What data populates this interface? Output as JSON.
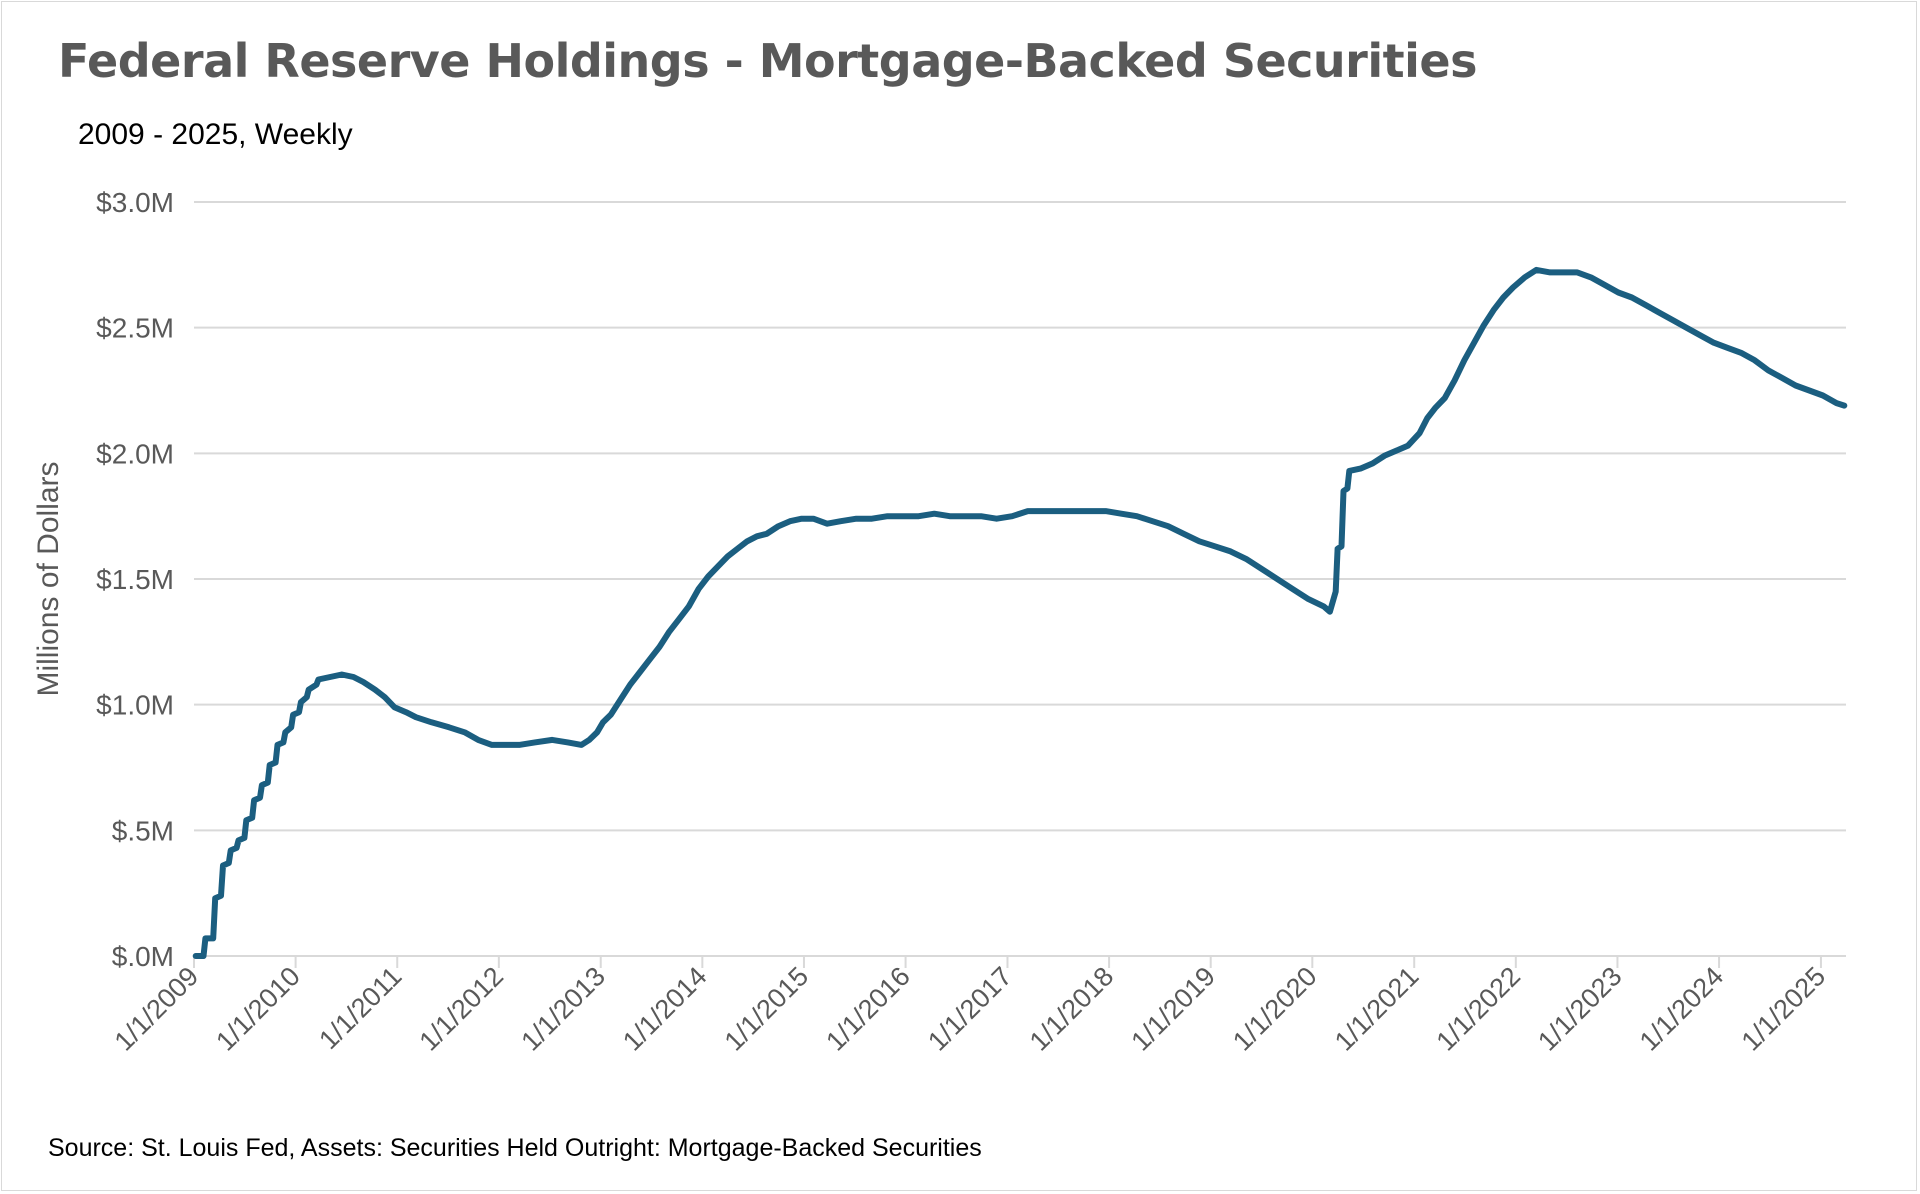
{
  "chart_data": {
    "type": "line",
    "title": "Federal Reserve Holdings - Mortgage-Backed Securities",
    "subtitle": "2009 - 2025, Weekly",
    "xlabel": "",
    "ylabel": "Millions of Dollars",
    "source": "Source: St. Louis Fed, Assets: Securities Held Outright: Mortgage-Backed Securities",
    "ylim": [
      0,
      3.0
    ],
    "y_unit": "millions (as labeled)",
    "yticks": [
      {
        "value": 0.0,
        "label": "$.0M"
      },
      {
        "value": 0.5,
        "label": "$.5M"
      },
      {
        "value": 1.0,
        "label": "$1.0M"
      },
      {
        "value": 1.5,
        "label": "$1.5M"
      },
      {
        "value": 2.0,
        "label": "$2.0M"
      },
      {
        "value": 2.5,
        "label": "$2.5M"
      },
      {
        "value": 3.0,
        "label": "$3.0M"
      }
    ],
    "xlim": [
      "2009-01-01",
      "2025-04-01"
    ],
    "xticks": [
      "1/1/2009",
      "1/1/2010",
      "1/1/2011",
      "1/1/2012",
      "1/1/2013",
      "1/1/2014",
      "1/1/2015",
      "1/1/2016",
      "1/1/2017",
      "1/1/2018",
      "1/1/2019",
      "1/1/2020",
      "1/1/2021",
      "1/1/2022",
      "1/1/2023",
      "1/1/2024",
      "1/1/2025"
    ],
    "grid": true,
    "legend": "none",
    "line_color": "#1b5e80",
    "series": [
      {
        "values": [
          [
            "2009-01-07",
            0.0
          ],
          [
            "2009-02-04",
            0.0
          ],
          [
            "2009-02-11",
            0.07
          ],
          [
            "2009-03-11",
            0.07
          ],
          [
            "2009-03-18",
            0.23
          ],
          [
            "2009-04-08",
            0.24
          ],
          [
            "2009-04-15",
            0.36
          ],
          [
            "2009-05-06",
            0.37
          ],
          [
            "2009-05-13",
            0.42
          ],
          [
            "2009-06-03",
            0.43
          ],
          [
            "2009-06-10",
            0.46
          ],
          [
            "2009-07-01",
            0.47
          ],
          [
            "2009-07-08",
            0.54
          ],
          [
            "2009-07-29",
            0.55
          ],
          [
            "2009-08-05",
            0.62
          ],
          [
            "2009-08-26",
            0.63
          ],
          [
            "2009-09-02",
            0.68
          ],
          [
            "2009-09-23",
            0.69
          ],
          [
            "2009-09-30",
            0.76
          ],
          [
            "2009-10-21",
            0.77
          ],
          [
            "2009-10-28",
            0.84
          ],
          [
            "2009-11-18",
            0.85
          ],
          [
            "2009-11-25",
            0.89
          ],
          [
            "2009-12-16",
            0.91
          ],
          [
            "2009-12-23",
            0.96
          ],
          [
            "2010-01-13",
            0.97
          ],
          [
            "2010-01-20",
            1.01
          ],
          [
            "2010-02-10",
            1.03
          ],
          [
            "2010-02-17",
            1.06
          ],
          [
            "2010-03-17",
            1.08
          ],
          [
            "2010-03-24",
            1.1
          ],
          [
            "2010-05-05",
            1.11
          ],
          [
            "2010-06-16",
            1.12
          ],
          [
            "2010-07-28",
            1.11
          ],
          [
            "2010-09-01",
            1.09
          ],
          [
            "2010-10-13",
            1.06
          ],
          [
            "2010-11-17",
            1.03
          ],
          [
            "2010-12-22",
            0.99
          ],
          [
            "2011-02-02",
            0.97
          ],
          [
            "2011-03-09",
            0.95
          ],
          [
            "2011-05-04",
            0.93
          ],
          [
            "2011-07-06",
            0.91
          ],
          [
            "2011-08-31",
            0.89
          ],
          [
            "2011-10-19",
            0.86
          ],
          [
            "2011-12-07",
            0.84
          ],
          [
            "2012-01-18",
            0.84
          ],
          [
            "2012-03-14",
            0.84
          ],
          [
            "2012-05-09",
            0.85
          ],
          [
            "2012-07-11",
            0.86
          ],
          [
            "2012-09-05",
            0.85
          ],
          [
            "2012-10-24",
            0.84
          ],
          [
            "2012-11-21",
            0.86
          ],
          [
            "2012-12-19",
            0.89
          ],
          [
            "2013-01-09",
            0.93
          ],
          [
            "2013-02-06",
            0.96
          ],
          [
            "2013-03-13",
            1.02
          ],
          [
            "2013-04-17",
            1.08
          ],
          [
            "2013-05-22",
            1.13
          ],
          [
            "2013-06-26",
            1.18
          ],
          [
            "2013-07-31",
            1.23
          ],
          [
            "2013-09-04",
            1.29
          ],
          [
            "2013-10-09",
            1.34
          ],
          [
            "2013-11-13",
            1.39
          ],
          [
            "2013-12-18",
            1.46
          ],
          [
            "2014-01-22",
            1.51
          ],
          [
            "2014-02-26",
            1.55
          ],
          [
            "2014-04-02",
            1.59
          ],
          [
            "2014-05-07",
            1.62
          ],
          [
            "2014-06-11",
            1.65
          ],
          [
            "2014-07-16",
            1.67
          ],
          [
            "2014-08-20",
            1.68
          ],
          [
            "2014-10-01",
            1.71
          ],
          [
            "2014-11-12",
            1.73
          ],
          [
            "2014-12-24",
            1.74
          ],
          [
            "2015-02-04",
            1.74
          ],
          [
            "2015-03-25",
            1.72
          ],
          [
            "2015-05-13",
            1.73
          ],
          [
            "2015-07-08",
            1.74
          ],
          [
            "2015-09-02",
            1.74
          ],
          [
            "2015-10-28",
            1.75
          ],
          [
            "2015-12-23",
            1.75
          ],
          [
            "2016-02-17",
            1.75
          ],
          [
            "2016-04-13",
            1.76
          ],
          [
            "2016-06-08",
            1.75
          ],
          [
            "2016-08-03",
            1.75
          ],
          [
            "2016-09-28",
            1.75
          ],
          [
            "2016-11-23",
            1.74
          ],
          [
            "2017-01-18",
            1.75
          ],
          [
            "2017-03-15",
            1.77
          ],
          [
            "2017-05-10",
            1.77
          ],
          [
            "2017-07-05",
            1.77
          ],
          [
            "2017-08-30",
            1.77
          ],
          [
            "2017-10-25",
            1.77
          ],
          [
            "2017-12-20",
            1.77
          ],
          [
            "2018-02-14",
            1.76
          ],
          [
            "2018-04-11",
            1.75
          ],
          [
            "2018-06-06",
            1.73
          ],
          [
            "2018-08-01",
            1.71
          ],
          [
            "2018-09-26",
            1.68
          ],
          [
            "2018-11-21",
            1.65
          ],
          [
            "2019-01-16",
            1.63
          ],
          [
            "2019-03-13",
            1.61
          ],
          [
            "2019-05-08",
            1.58
          ],
          [
            "2019-07-03",
            1.54
          ],
          [
            "2019-08-28",
            1.5
          ],
          [
            "2019-10-23",
            1.46
          ],
          [
            "2019-12-18",
            1.42
          ],
          [
            "2020-02-12",
            1.39
          ],
          [
            "2020-03-04",
            1.37
          ],
          [
            "2020-03-25",
            1.45
          ],
          [
            "2020-04-01",
            1.62
          ],
          [
            "2020-04-15",
            1.63
          ],
          [
            "2020-04-22",
            1.85
          ],
          [
            "2020-05-06",
            1.86
          ],
          [
            "2020-05-13",
            1.93
          ],
          [
            "2020-06-24",
            1.94
          ],
          [
            "2020-08-05",
            1.96
          ],
          [
            "2020-09-16",
            1.99
          ],
          [
            "2020-10-28",
            2.01
          ],
          [
            "2020-12-09",
            2.03
          ],
          [
            "2021-01-20",
            2.08
          ],
          [
            "2021-02-17",
            2.14
          ],
          [
            "2021-03-17",
            2.18
          ],
          [
            "2021-04-21",
            2.22
          ],
          [
            "2021-05-26",
            2.29
          ],
          [
            "2021-06-30",
            2.37
          ],
          [
            "2021-08-04",
            2.44
          ],
          [
            "2021-09-08",
            2.51
          ],
          [
            "2021-10-13",
            2.57
          ],
          [
            "2021-11-17",
            2.62
          ],
          [
            "2021-12-22",
            2.66
          ],
          [
            "2022-02-02",
            2.7
          ],
          [
            "2022-03-16",
            2.73
          ],
          [
            "2022-05-04",
            2.72
          ],
          [
            "2022-06-22",
            2.72
          ],
          [
            "2022-08-10",
            2.72
          ],
          [
            "2022-09-28",
            2.7
          ],
          [
            "2022-11-16",
            2.67
          ],
          [
            "2023-01-04",
            2.64
          ],
          [
            "2023-02-22",
            2.62
          ],
          [
            "2023-04-12",
            2.59
          ],
          [
            "2023-05-31",
            2.56
          ],
          [
            "2023-07-19",
            2.53
          ],
          [
            "2023-09-06",
            2.5
          ],
          [
            "2023-10-25",
            2.47
          ],
          [
            "2023-12-13",
            2.44
          ],
          [
            "2024-01-31",
            2.42
          ],
          [
            "2024-03-20",
            2.4
          ],
          [
            "2024-05-08",
            2.37
          ],
          [
            "2024-06-26",
            2.33
          ],
          [
            "2024-08-14",
            2.3
          ],
          [
            "2024-10-02",
            2.27
          ],
          [
            "2024-11-20",
            2.25
          ],
          [
            "2025-01-08",
            2.23
          ],
          [
            "2025-02-26",
            2.2
          ],
          [
            "2025-03-26",
            2.19
          ]
        ]
      }
    ]
  }
}
